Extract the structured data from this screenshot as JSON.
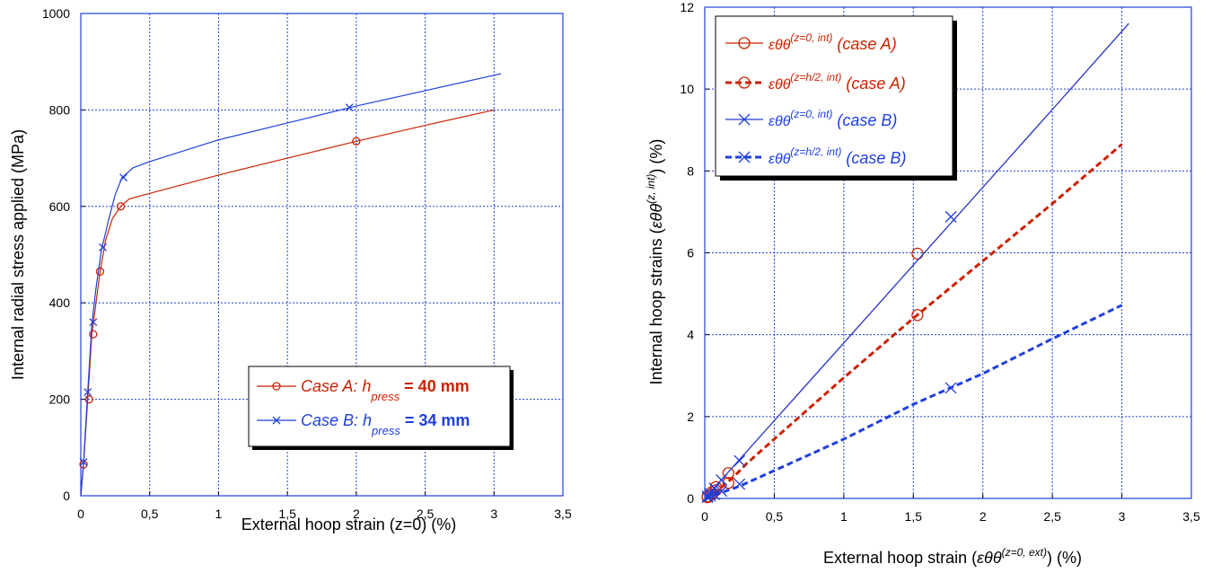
{
  "chart_data": [
    {
      "type": "line",
      "xlabel": "External hoop strain (z=0) (%)",
      "ylabel": "Internal radial stress applied (MPa)",
      "xlim": [
        0,
        3.5
      ],
      "ylim": [
        0,
        1000
      ],
      "xticks": [
        "0",
        "0,5",
        "1",
        "1,5",
        "2",
        "2,5",
        "3",
        "3,5"
      ],
      "yticks": [
        "0",
        "200",
        "400",
        "600",
        "800",
        "1000"
      ],
      "grid": true,
      "legend_position": "lower-right",
      "series": [
        {
          "name": "Case A: h_press = 40 mm",
          "legend_parts": [
            "Case A: h",
            "press",
            " = 40 mm"
          ],
          "color": "#cc2200",
          "marker": "circle",
          "dashed": false,
          "x": [
            0,
            0.02,
            0.05,
            0.08,
            0.11,
            0.14,
            0.18,
            0.23,
            0.29,
            0.35,
            0.5,
            1.0,
            1.5,
            2.0,
            2.5,
            3.0
          ],
          "y": [
            0,
            65,
            200,
            335,
            400,
            465,
            530,
            575,
            600,
            615,
            627,
            665,
            700,
            735,
            768,
            800
          ],
          "markers_x": [
            0.02,
            0.06,
            0.09,
            0.14,
            0.29,
            2.0
          ],
          "markers_y": [
            65,
            200,
            335,
            465,
            600,
            735
          ]
        },
        {
          "name": "Case B: h_press = 34 mm",
          "legend_parts": [
            "Case B: h",
            "press",
            " = 34 mm"
          ],
          "color": "#1f3fdd",
          "marker": "x",
          "dashed": false,
          "x": [
            0,
            0.02,
            0.05,
            0.08,
            0.11,
            0.15,
            0.2,
            0.25,
            0.3,
            0.38,
            0.5,
            1.0,
            1.5,
            2.0,
            2.5,
            3.05
          ],
          "y": [
            0,
            70,
            215,
            355,
            430,
            510,
            570,
            625,
            660,
            680,
            693,
            738,
            773,
            808,
            840,
            875
          ],
          "markers_x": [
            0.02,
            0.05,
            0.09,
            0.16,
            0.31,
            1.95
          ],
          "markers_y": [
            70,
            215,
            360,
            515,
            660,
            805
          ]
        }
      ]
    },
    {
      "type": "line",
      "xlabel_parts": [
        "External hoop strain (",
        "εθθ",
        "(z=0, ext)",
        ") (%)"
      ],
      "ylabel_parts": [
        "Internal hoop strains (",
        "εθθ",
        "(z, int)",
        ") (%)"
      ],
      "xlim": [
        0,
        3.5
      ],
      "ylim": [
        0,
        12
      ],
      "xticks": [
        "0",
        "0,5",
        "1",
        "1,5",
        "2",
        "2,5",
        "3",
        "3,5"
      ],
      "yticks": [
        "0",
        "2",
        "4",
        "6",
        "8",
        "10",
        "12"
      ],
      "grid": true,
      "legend_position": "top-left",
      "series": [
        {
          "legend_parts": [
            "εθθ",
            "(z=0, int)",
            " (case A)"
          ],
          "color": "#cc2200",
          "marker": "circle",
          "dashed": false,
          "x": [
            0,
            0.5,
            1.0,
            1.5,
            2.0,
            2.5,
            3.05
          ],
          "y": [
            0,
            1.9,
            3.8,
            5.7,
            7.6,
            9.5,
            11.6
          ],
          "markers_x": [
            0.02,
            0.05,
            0.08,
            0.17,
            1.53
          ],
          "markers_y": [
            0.05,
            0.15,
            0.28,
            0.62,
            5.98
          ]
        },
        {
          "legend_parts": [
            "εθθ",
            "(z=h/2, int)",
            " (case A)"
          ],
          "color": "#cc2200",
          "marker": "circle",
          "dashed": true,
          "x": [
            0,
            0.1,
            0.2,
            0.3,
            0.5,
            1.0,
            1.5,
            2.0,
            2.5,
            3.0
          ],
          "y": [
            0,
            0.22,
            0.5,
            0.85,
            1.45,
            2.95,
            4.4,
            5.8,
            7.2,
            8.65
          ],
          "markers_x": [
            0.02,
            0.05,
            0.08,
            0.17,
            1.53
          ],
          "markers_y": [
            0.03,
            0.1,
            0.2,
            0.38,
            4.48
          ]
        },
        {
          "legend_parts": [
            "εθθ",
            "(z=0, int)",
            " (case B)"
          ],
          "color": "#1f3fdd",
          "marker": "x",
          "dashed": false,
          "x": [
            0,
            0.5,
            1.0,
            1.5,
            2.0,
            2.5,
            3.05
          ],
          "y": [
            0,
            1.9,
            3.8,
            5.7,
            7.6,
            9.5,
            11.6
          ],
          "markers_x": [
            0.02,
            0.04,
            0.07,
            0.12,
            0.25,
            1.77
          ],
          "markers_y": [
            0.05,
            0.12,
            0.25,
            0.45,
            0.92,
            6.88
          ]
        },
        {
          "legend_parts": [
            "εθθ",
            "(z=h/2, int)",
            " (case B)"
          ],
          "color": "#1f3fdd",
          "marker": "x",
          "dashed": true,
          "x": [
            0,
            0.1,
            0.25,
            0.5,
            1.0,
            1.5,
            2.0,
            2.5,
            3.0
          ],
          "y": [
            0,
            0.12,
            0.3,
            0.68,
            1.45,
            2.3,
            3.05,
            3.9,
            4.72
          ],
          "markers_x": [
            0.02,
            0.04,
            0.07,
            0.12,
            0.25,
            1.77
          ],
          "markers_y": [
            0.03,
            0.06,
            0.1,
            0.18,
            0.35,
            2.7
          ]
        }
      ]
    }
  ]
}
